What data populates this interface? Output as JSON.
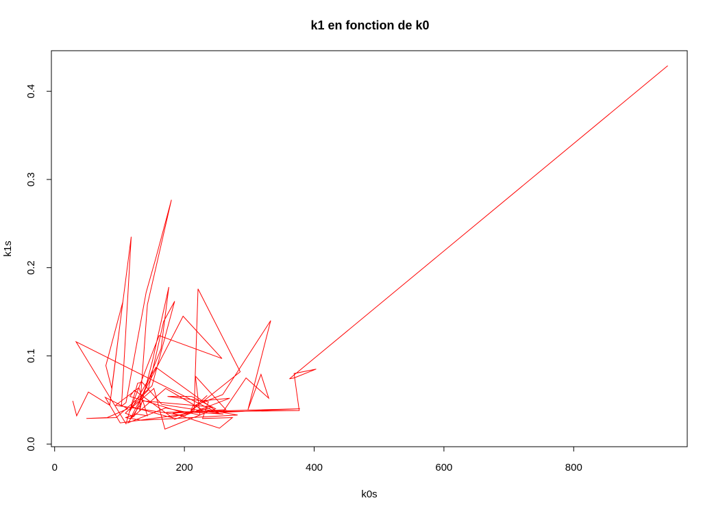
{
  "chart_data": {
    "type": "line",
    "title": "k1 en fonction de k0",
    "xlabel": "k0s",
    "ylabel": "k1s",
    "xlim": [
      -5,
      975
    ],
    "ylim": [
      -0.003,
      0.446
    ],
    "x_ticks": [
      0,
      200,
      400,
      600,
      800
    ],
    "x_tick_labels": [
      "0",
      "200",
      "400",
      "600",
      "800"
    ],
    "y_ticks": [
      0.0,
      0.1,
      0.2,
      0.3,
      0.4
    ],
    "y_tick_labels": [
      "0.0",
      "0.1",
      "0.2",
      "0.3",
      "0.4"
    ],
    "grid": false,
    "series": [
      {
        "color": "#ff0000",
        "x": [
          28,
          34,
          52,
          85,
          105,
          79,
          88,
          118,
          103,
          110,
          141,
          156,
          180,
          143,
          131,
          151,
          176,
          164,
          122,
          109,
          144,
          168,
          185,
          150,
          95,
          49,
          81,
          113,
          78,
          101,
          201,
          244,
          136,
          113,
          171,
          224,
          217,
          264,
          182,
          254,
          274,
          228,
          237,
          174,
          211,
          248,
          170,
          153,
          120,
          180,
          215,
          221,
          286,
          201,
          94,
          130,
          143,
          127,
          109,
          134,
          186,
          282,
          225,
          171,
          116,
          198,
          258,
          161,
          115,
          156,
          237,
          255,
          33,
          110,
          128,
          135,
          165,
          260,
          192,
          116,
          123,
          185,
          270,
          226,
          235,
          210,
          213,
          259,
          333,
          298,
          318,
          330,
          295,
          259,
          378,
          172,
          377,
          369,
          403,
          369,
          362,
          945
        ],
        "y": [
          0.049,
          0.032,
          0.059,
          0.044,
          0.161,
          0.089,
          0.063,
          0.235,
          0.043,
          0.047,
          0.172,
          0.211,
          0.277,
          0.158,
          0.038,
          0.095,
          0.178,
          0.108,
          0.031,
          0.035,
          0.061,
          0.139,
          0.162,
          0.066,
          0.03,
          0.029,
          0.03,
          0.04,
          0.053,
          0.024,
          0.034,
          0.042,
          0.049,
          0.024,
          0.041,
          0.033,
          0.077,
          0.039,
          0.035,
          0.018,
          0.03,
          0.029,
          0.048,
          0.054,
          0.054,
          0.04,
          0.017,
          0.063,
          0.042,
          0.03,
          0.038,
          0.176,
          0.082,
          0.032,
          0.044,
          0.064,
          0.032,
          0.034,
          0.03,
          0.027,
          0.029,
          0.033,
          0.04,
          0.063,
          0.028,
          0.145,
          0.097,
          0.123,
          0.036,
          0.087,
          0.044,
          0.034,
          0.116,
          0.023,
          0.069,
          0.07,
          0.045,
          0.034,
          0.037,
          0.054,
          0.061,
          0.028,
          0.052,
          0.049,
          0.055,
          0.038,
          0.043,
          0.056,
          0.14,
          0.039,
          0.079,
          0.052,
          0.075,
          0.036,
          0.04,
          0.036,
          0.038,
          0.08,
          0.085,
          0.075,
          0.074,
          0.429
        ]
      }
    ]
  }
}
